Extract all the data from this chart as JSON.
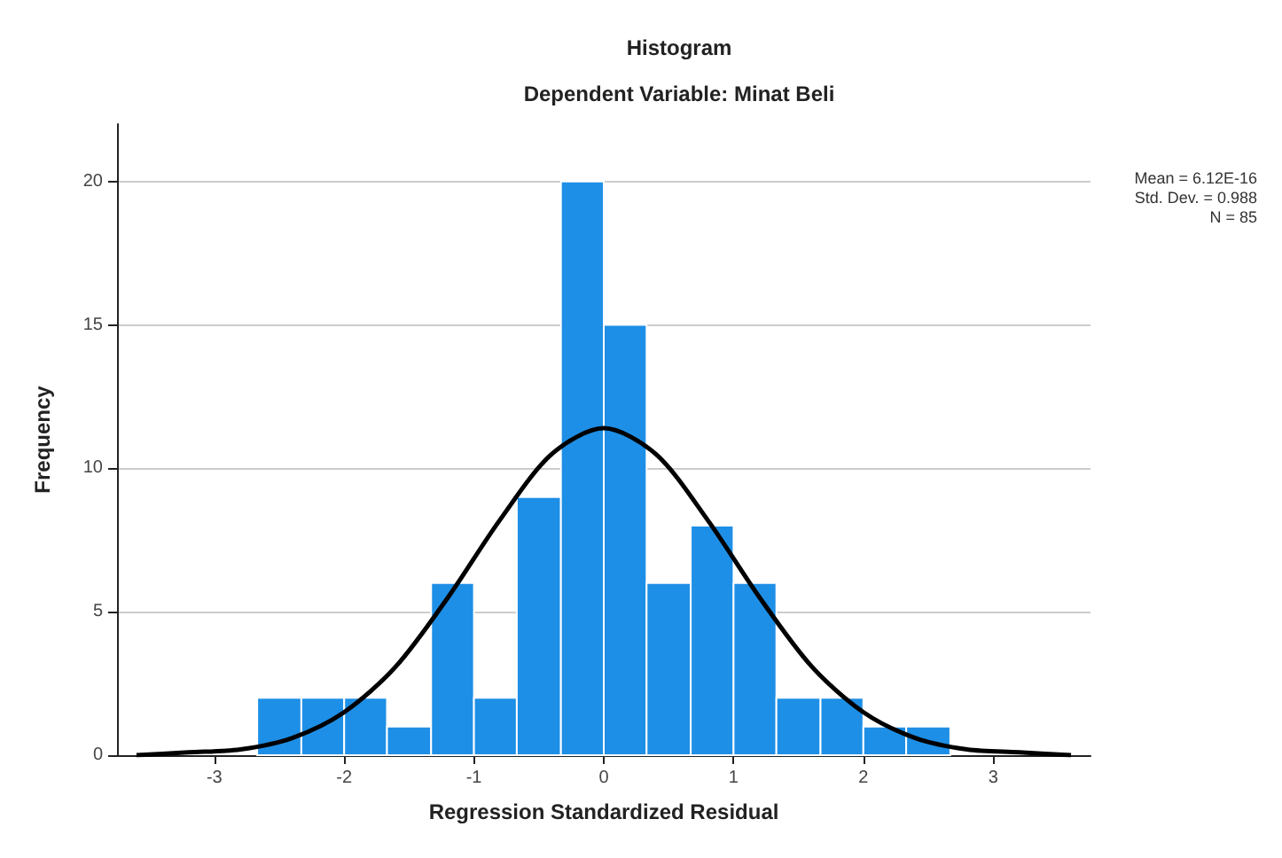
{
  "chart_data": {
    "type": "histogram",
    "title": "Histogram",
    "subtitle": "Dependent Variable: Minat Beli",
    "xlabel": "Regression Standardized Residual",
    "ylabel": "Frequency",
    "bins": [
      -2.67,
      -2.33,
      -2,
      -1.67,
      -1.33,
      -1,
      -0.67,
      -0.33,
      0,
      0.33,
      0.67,
      1,
      1.33,
      1.67,
      2,
      2.33,
      2.67
    ],
    "values": [
      2,
      2,
      2,
      1,
      6,
      2,
      9,
      20,
      15,
      6,
      8,
      6,
      2,
      2,
      1,
      1
    ],
    "color": "#1e8fe6",
    "series": [
      {
        "type": "line",
        "color": "#000000",
        "x": [
          -3.6,
          -3.2,
          -2.8,
          -2.4,
          -2.0,
          -1.6,
          -1.2,
          -0.8,
          -0.4,
          0,
          0.4,
          0.8,
          1.2,
          1.6,
          2.0,
          2.4,
          2.8,
          3.2,
          3.6
        ],
        "values": [
          0.0,
          0.1,
          0.2,
          0.6,
          1.5,
          3.1,
          5.5,
          8.2,
          10.5,
          11.4,
          10.5,
          8.2,
          5.5,
          3.1,
          1.5,
          0.6,
          0.2,
          0.1,
          0.0
        ]
      }
    ],
    "annotations": [
      "Mean = 6.12E-16",
      "Std. Dev. = 0.988",
      "N = 85"
    ],
    "xlim": [
      -3.75,
      3.75
    ],
    "xticks": [
      -3,
      -2,
      -1,
      0,
      1,
      2,
      3
    ],
    "ylim": [
      0,
      22
    ],
    "yticks": [
      0,
      5,
      10,
      15,
      20
    ],
    "grid": "y"
  }
}
